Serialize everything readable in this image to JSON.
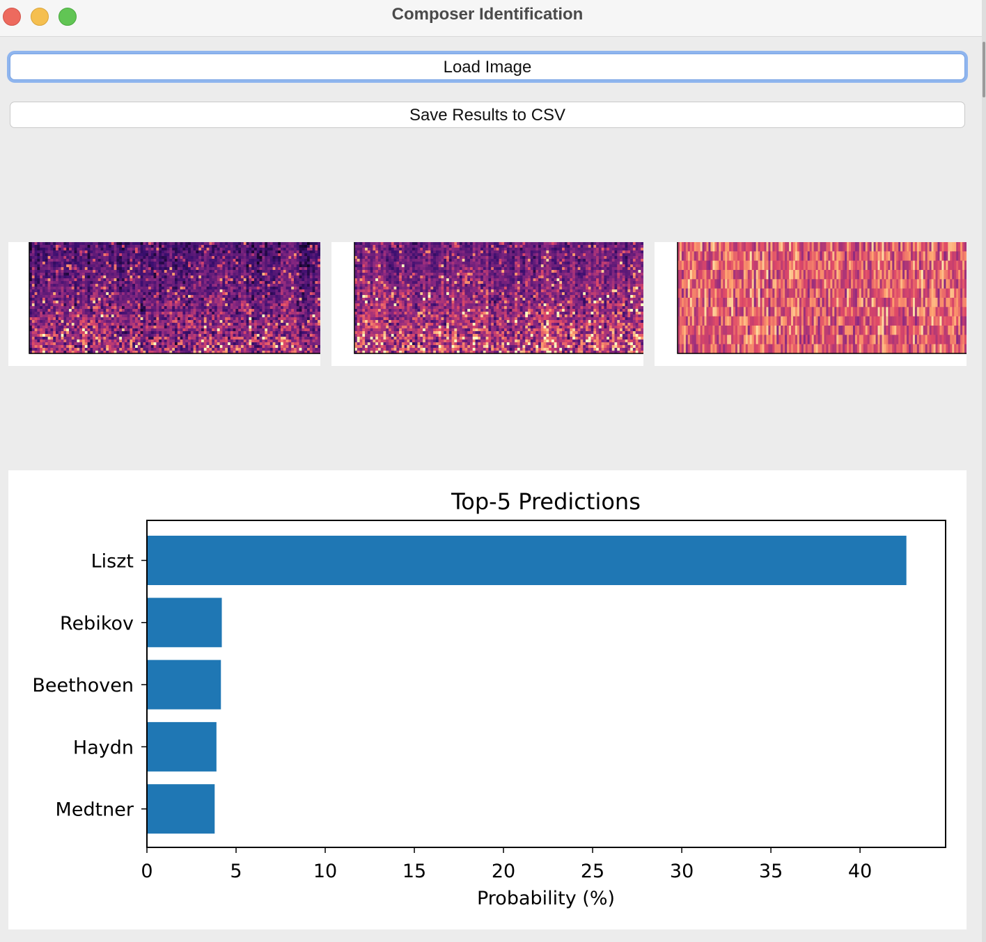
{
  "window": {
    "title": "Composer Identification"
  },
  "buttons": {
    "load_label": "Load Image",
    "save_label": "Save Results to CSV"
  },
  "chart_data": {
    "type": "bar",
    "orientation": "horizontal",
    "title": "Top-5 Predictions",
    "xlabel": "Probability (%)",
    "ylabel": "",
    "categories": [
      "Liszt",
      "Rebikov",
      "Beethoven",
      "Haydn",
      "Medtner"
    ],
    "values": [
      42.6,
      4.2,
      4.15,
      3.9,
      3.8
    ],
    "xlim": [
      0,
      44.8
    ],
    "xticks": [
      0,
      5,
      10,
      15,
      20,
      25,
      30,
      35,
      40
    ],
    "grid": false,
    "bar_color": "#1f77b4"
  },
  "colors": {
    "accent": "#8fb5ee",
    "bar": "#1f77b4"
  }
}
